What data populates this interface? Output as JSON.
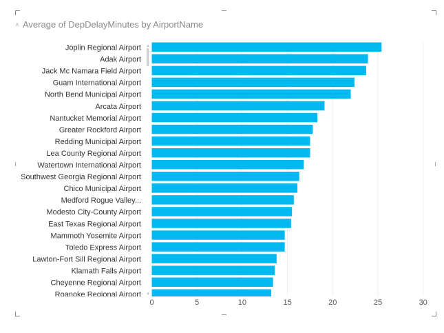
{
  "chart_data": {
    "type": "bar",
    "orientation": "horizontal",
    "title": "Average of DepDelayMinutes by AirportName",
    "xlabel": "",
    "ylabel": "",
    "xlim": [
      0,
      30
    ],
    "xticks": [
      0,
      5,
      10,
      15,
      20,
      25,
      30
    ],
    "grid": true,
    "color": "#01B8F1",
    "categories": [
      "Joplin Regional Airport",
      "Adak Airport",
      "Jack Mc Namara Field Airport",
      "Guam International Airport",
      "North Bend Municipal Airport",
      "Arcata Airport",
      "Nantucket Memorial Airport",
      "Greater Rockford Airport",
      "Redding Municipal Airport",
      "Lea County Regional Airport",
      "Watertown International Airport",
      "Southwest Georgia Regional Airport",
      "Chico Municipal Airport",
      "Medford Rogue Valley...",
      "Modesto City-County Airport",
      "East Texas Regional Airport",
      "Mammoth Yosemite Airport",
      "Toledo Express Airport",
      "Lawton-Fort Sill Regional Airport",
      "Klamath Falls Airport",
      "Cheyenne Regional Airport",
      "Roanoke Regional Airport"
    ],
    "values": [
      25.4,
      23.9,
      23.7,
      22.4,
      22.0,
      19.1,
      18.3,
      17.8,
      17.5,
      17.5,
      16.8,
      16.3,
      16.1,
      15.7,
      15.5,
      15.4,
      14.7,
      14.7,
      13.8,
      13.6,
      13.4,
      13.2
    ]
  }
}
